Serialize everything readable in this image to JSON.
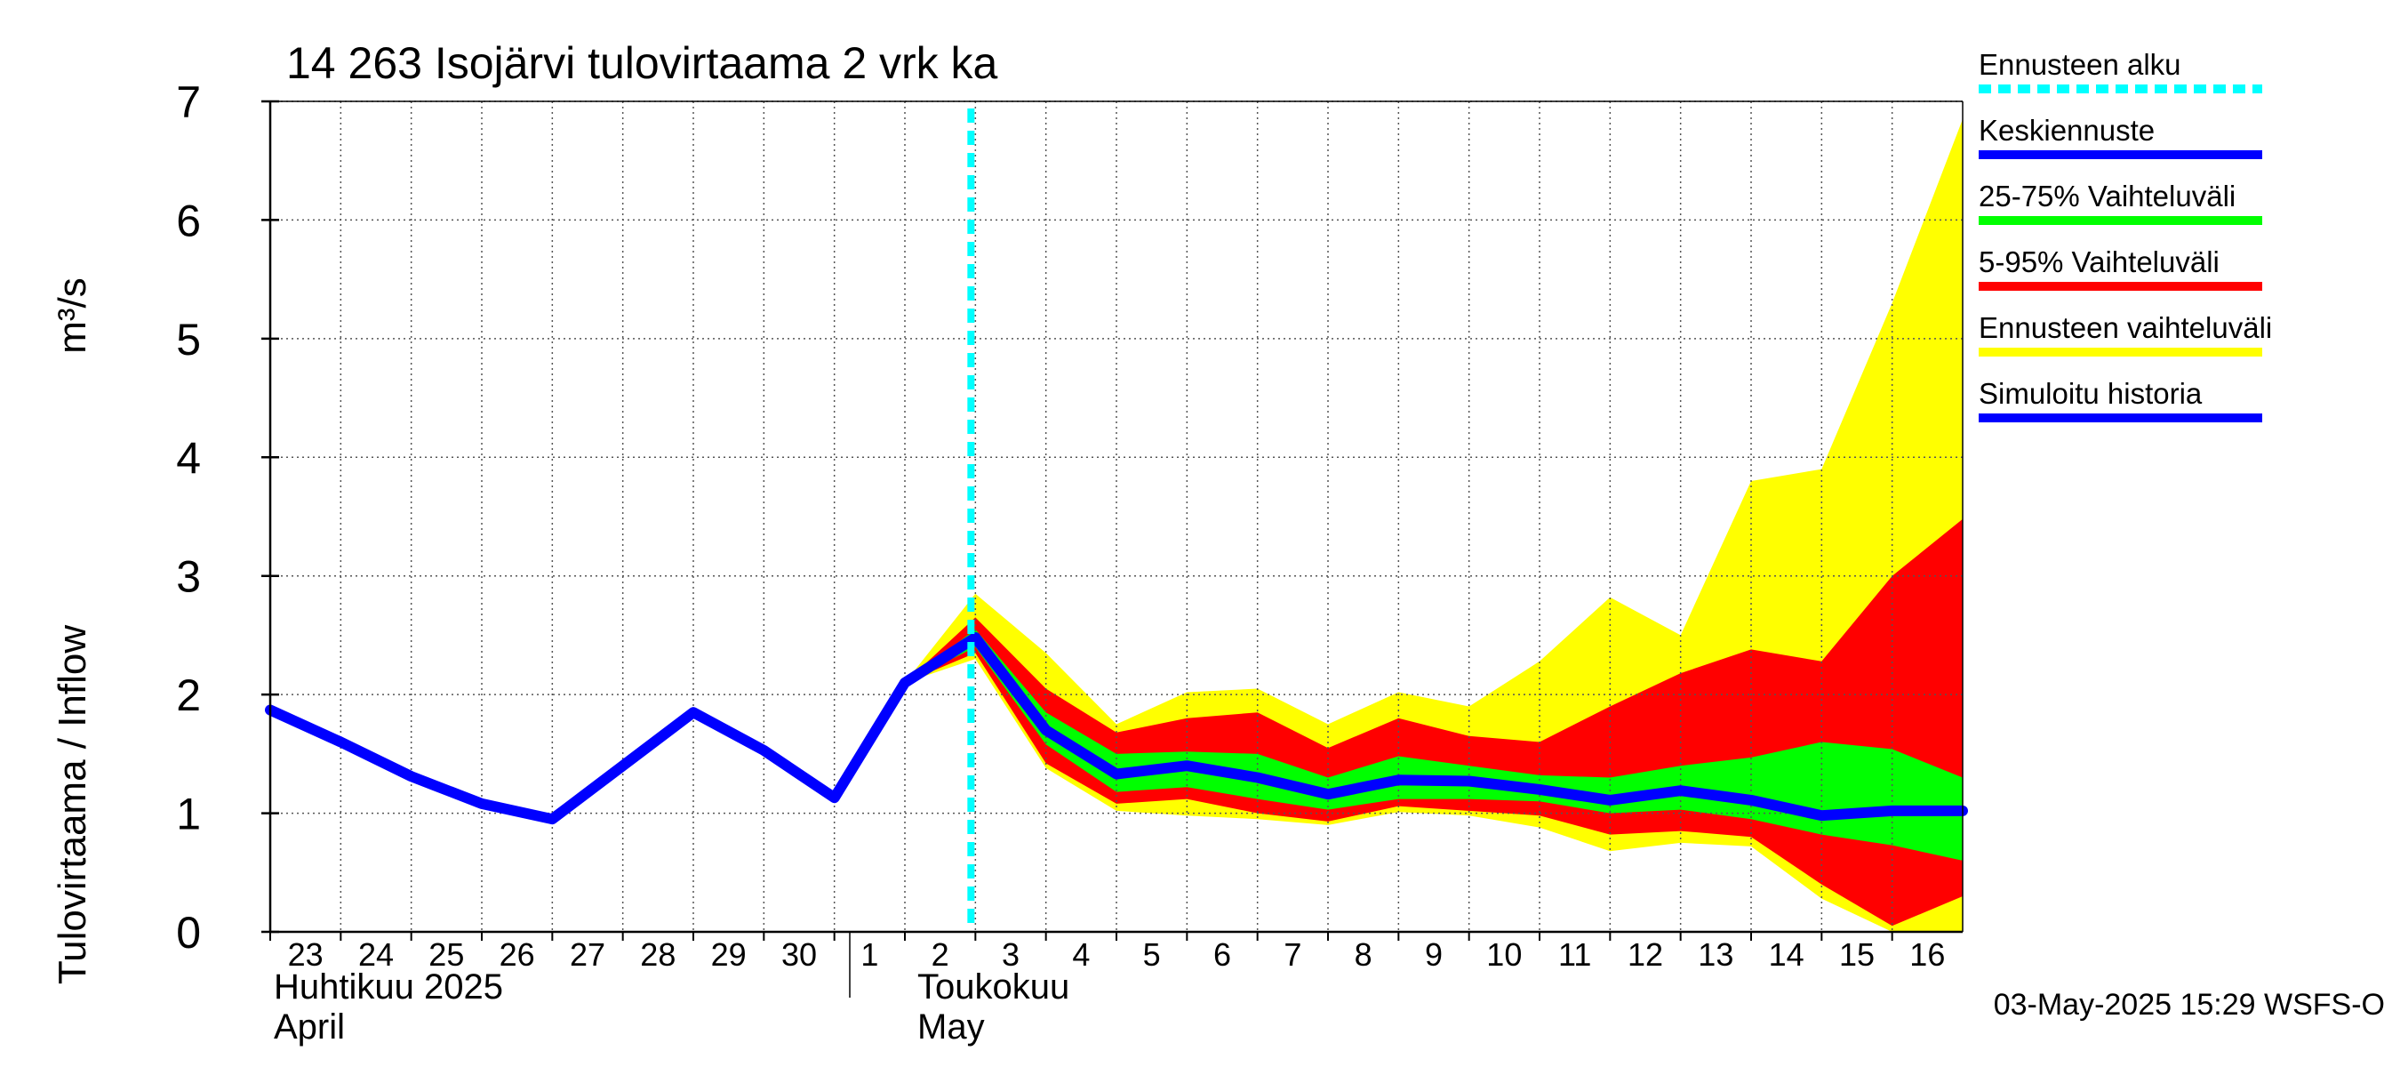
{
  "chart_data": {
    "type": "area",
    "title": "14 263 Isojärvi tulovirtaama 2 vrk ka",
    "ylabel": "Tulovirtaama / Inflow",
    "yunit": "m³/s",
    "ylim": [
      0,
      7
    ],
    "yticks": [
      "0",
      "1",
      "2",
      "3",
      "4",
      "5",
      "6",
      "7"
    ],
    "xlim": [
      "2025-04-23",
      "2025-05-17"
    ],
    "x_tick_labels": [
      "23",
      "24",
      "25",
      "26",
      "27",
      "28",
      "29",
      "30",
      "1",
      "2",
      "3",
      "4",
      "5",
      "6",
      "7",
      "8",
      "9",
      "10",
      "11",
      "12",
      "13",
      "14",
      "15",
      "16"
    ],
    "x_tick_dates": [
      "2025-04-23",
      "2025-04-24",
      "2025-04-25",
      "2025-04-26",
      "2025-04-27",
      "2025-04-28",
      "2025-04-29",
      "2025-04-30",
      "2025-05-01",
      "2025-05-02",
      "2025-05-03",
      "2025-05-04",
      "2025-05-05",
      "2025-05-06",
      "2025-05-07",
      "2025-05-08",
      "2025-05-09",
      "2025-05-10",
      "2025-05-11",
      "2025-05-12",
      "2025-05-13",
      "2025-05-14",
      "2025-05-15",
      "2025-05-16"
    ],
    "month_labels": [
      {
        "date": "2025-04-23",
        "line1": "Huhtikuu  2025",
        "line2": "April"
      },
      {
        "date": "2025-05-02",
        "line1": "Toukokuu",
        "line2": "May"
      }
    ],
    "grid": true,
    "legend_position": "right",
    "forecast_start": "2025-05-03",
    "series": [
      {
        "name": "Simuloitu historia",
        "kind": "line",
        "color": "#0000ff",
        "x": [
          "2025-04-23",
          "2025-04-24",
          "2025-04-25",
          "2025-04-26",
          "2025-04-27",
          "2025-04-28",
          "2025-04-29",
          "2025-04-30",
          "2025-05-01",
          "2025-05-02",
          "2025-05-03"
        ],
        "y": [
          1.87,
          1.6,
          1.31,
          1.08,
          0.95,
          1.4,
          1.85,
          1.53,
          1.13,
          2.1,
          2.48
        ]
      },
      {
        "name": "Ennusteen vaihteluväli",
        "kind": "band",
        "color": "#ffff00",
        "x": [
          "2025-05-02",
          "2025-05-03",
          "2025-05-04",
          "2025-05-05",
          "2025-05-06",
          "2025-05-07",
          "2025-05-08",
          "2025-05-09",
          "2025-05-10",
          "2025-05-11",
          "2025-05-12",
          "2025-05-13",
          "2025-05-14",
          "2025-05-15",
          "2025-05-16",
          "2025-05-17"
        ],
        "upper": [
          2.1,
          2.85,
          2.35,
          1.75,
          2.02,
          2.05,
          1.75,
          2.02,
          1.9,
          2.28,
          2.82,
          2.5,
          3.8,
          3.9,
          5.3,
          6.85
        ],
        "lower": [
          2.1,
          2.3,
          1.38,
          1.02,
          0.98,
          0.95,
          0.9,
          1.01,
          0.98,
          0.88,
          0.68,
          0.75,
          0.72,
          0.28,
          0.0,
          0.0
        ]
      },
      {
        "name": "5-95% Vaihteluväli",
        "kind": "band",
        "color": "#ff0000",
        "x": [
          "2025-05-02",
          "2025-05-03",
          "2025-05-04",
          "2025-05-05",
          "2025-05-06",
          "2025-05-07",
          "2025-05-08",
          "2025-05-09",
          "2025-05-10",
          "2025-05-11",
          "2025-05-12",
          "2025-05-13",
          "2025-05-14",
          "2025-05-15",
          "2025-05-16",
          "2025-05-17"
        ],
        "upper": [
          2.1,
          2.65,
          2.05,
          1.68,
          1.8,
          1.85,
          1.55,
          1.8,
          1.65,
          1.6,
          1.9,
          2.18,
          2.38,
          2.28,
          3.0,
          3.48
        ],
        "lower": [
          2.1,
          2.35,
          1.42,
          1.08,
          1.12,
          1.0,
          0.93,
          1.06,
          1.02,
          0.98,
          0.82,
          0.85,
          0.8,
          0.4,
          0.05,
          0.3
        ]
      },
      {
        "name": "25-75% Vaihteluväli",
        "kind": "band",
        "color": "#00ff00",
        "x": [
          "2025-05-02",
          "2025-05-03",
          "2025-05-04",
          "2025-05-05",
          "2025-05-06",
          "2025-05-07",
          "2025-05-08",
          "2025-05-09",
          "2025-05-10",
          "2025-05-11",
          "2025-05-12",
          "2025-05-13",
          "2025-05-14",
          "2025-05-15",
          "2025-05-16",
          "2025-05-17"
        ],
        "upper": [
          2.1,
          2.55,
          1.85,
          1.5,
          1.52,
          1.5,
          1.3,
          1.48,
          1.4,
          1.32,
          1.3,
          1.4,
          1.47,
          1.6,
          1.54,
          1.3
        ],
        "lower": [
          2.1,
          2.4,
          1.58,
          1.18,
          1.22,
          1.12,
          1.03,
          1.12,
          1.12,
          1.1,
          1.0,
          1.03,
          0.95,
          0.82,
          0.73,
          0.6
        ]
      },
      {
        "name": "Keskiennuste",
        "kind": "line",
        "color": "#0000ff",
        "x": [
          "2025-05-03",
          "2025-05-04",
          "2025-05-05",
          "2025-05-06",
          "2025-05-07",
          "2025-05-08",
          "2025-05-09",
          "2025-05-10",
          "2025-05-11",
          "2025-05-12",
          "2025-05-13",
          "2025-05-14",
          "2025-05-15",
          "2025-05-16",
          "2025-05-17"
        ],
        "y": [
          2.48,
          1.7,
          1.33,
          1.4,
          1.3,
          1.16,
          1.28,
          1.27,
          1.2,
          1.11,
          1.19,
          1.11,
          0.98,
          1.02,
          1.02
        ]
      }
    ],
    "legend": [
      {
        "label": "Ennusteen alku",
        "color": "#00ffff",
        "style": "dashed"
      },
      {
        "label": "Keskiennuste",
        "color": "#0000ff",
        "style": "solid"
      },
      {
        "label": "25-75% Vaihteluväli",
        "color": "#00ff00",
        "style": "solid"
      },
      {
        "label": "5-95% Vaihteluväli",
        "color": "#ff0000",
        "style": "solid"
      },
      {
        "label": "Ennusteen vaihteluväli",
        "color": "#ffff00",
        "style": "solid"
      },
      {
        "label": "Simuloitu historia",
        "color": "#0000ff",
        "style": "solid"
      }
    ],
    "footer": "03-May-2025 15:29 WSFS-O"
  }
}
